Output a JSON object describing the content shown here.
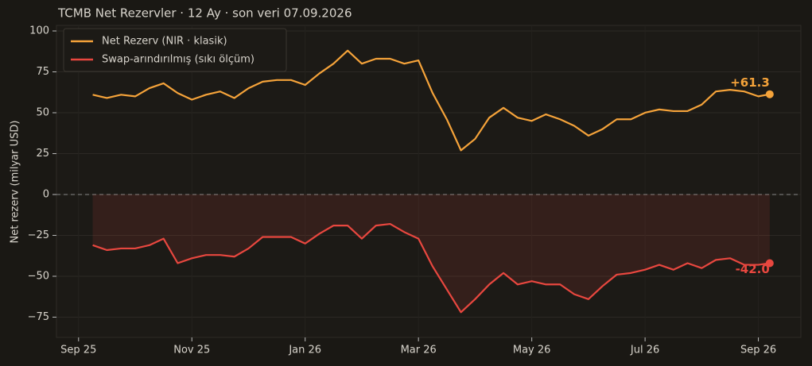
{
  "chart_data": {
    "type": "line",
    "title": "TCMB Net Rezervler · 12 Ay · son veri 07.09.2026",
    "y_label": "Net rezerv (milyar USD)",
    "x": [
      0.25,
      0.5,
      0.75,
      1.0,
      1.25,
      1.5,
      1.75,
      2.0,
      2.25,
      2.5,
      2.75,
      3.0,
      3.25,
      3.5,
      3.75,
      4.0,
      4.25,
      4.5,
      4.75,
      5.0,
      5.25,
      5.5,
      5.75,
      6.0,
      6.25,
      6.5,
      6.75,
      7.0,
      7.25,
      7.5,
      7.75,
      8.0,
      8.25,
      8.5,
      8.75,
      9.0,
      9.25,
      9.5,
      9.75,
      10.0,
      10.25,
      10.5,
      10.75,
      11.0,
      11.25,
      11.5,
      11.75,
      12.0,
      12.2
    ],
    "series": [
      {
        "name": "Net Rezerv (NIR · klasik)",
        "color": "#f5a33a",
        "values": [
          61,
          59,
          61,
          60,
          65,
          68,
          62,
          58,
          61,
          63,
          59,
          65,
          69,
          70,
          70,
          67,
          74,
          80,
          88,
          80,
          83,
          83,
          80,
          82,
          62,
          46,
          27,
          34,
          47,
          53,
          47,
          45,
          49,
          46,
          42,
          36,
          40,
          46,
          46,
          50,
          52,
          51,
          51,
          55,
          63,
          64,
          63,
          60,
          61.3
        ],
        "value_labels": [
          null,
          null,
          null,
          null,
          null,
          null,
          null,
          null,
          null,
          null,
          null,
          null,
          null,
          null,
          null,
          null,
          null,
          null,
          null,
          null,
          null,
          null,
          null,
          null,
          null,
          null,
          null,
          null,
          null,
          null,
          null,
          null,
          null,
          null,
          null,
          null,
          null,
          null,
          null,
          null,
          null,
          null,
          null,
          null,
          null,
          null,
          null,
          null,
          "+61.3"
        ]
      },
      {
        "name": "Swap-arındırılmış (sıkı ölçüm)",
        "color": "#e8473f",
        "values": [
          -31,
          -34,
          -33,
          -33,
          -31,
          -27,
          -42,
          -39,
          -37,
          -37,
          -38,
          -33,
          -26,
          -26,
          -26,
          -30,
          -24,
          -19,
          -19,
          -27,
          -19,
          -18,
          -23,
          -27,
          -44,
          -58,
          -72,
          -64,
          -55,
          -48,
          -55,
          -53,
          -55,
          -55,
          -61,
          -64,
          -56,
          -49,
          -48,
          -46,
          -43,
          -46,
          -42,
          -45,
          -40,
          -39,
          -43,
          -43,
          -42
        ],
        "value_labels": [
          null,
          null,
          null,
          null,
          null,
          null,
          null,
          null,
          null,
          null,
          null,
          null,
          null,
          null,
          null,
          null,
          null,
          null,
          null,
          null,
          null,
          null,
          null,
          null,
          null,
          null,
          null,
          null,
          null,
          null,
          null,
          null,
          null,
          null,
          null,
          null,
          null,
          null,
          null,
          null,
          null,
          null,
          null,
          null,
          null,
          null,
          null,
          null,
          "-42.0"
        ]
      }
    ],
    "xlim": [
      -0.39,
      12.75
    ],
    "xticks": [
      {
        "value": 0,
        "label": "Sep 25"
      },
      {
        "value": 2,
        "label": "Nov 25"
      },
      {
        "value": 4,
        "label": "Jan 26"
      },
      {
        "value": 6,
        "label": "Mar 26"
      },
      {
        "value": 8,
        "label": "May 26"
      },
      {
        "value": 10,
        "label": "Jul 26"
      },
      {
        "value": 12,
        "label": "Sep 26"
      }
    ],
    "ylim": [
      -87.4,
      103.4
    ],
    "yticks": [
      {
        "value": -75,
        "label": "−75"
      },
      {
        "value": -50,
        "label": "−50"
      },
      {
        "value": -25,
        "label": "−25"
      },
      0,
      25,
      50,
      75,
      100
    ],
    "grid": true,
    "legend": "upper-left"
  }
}
